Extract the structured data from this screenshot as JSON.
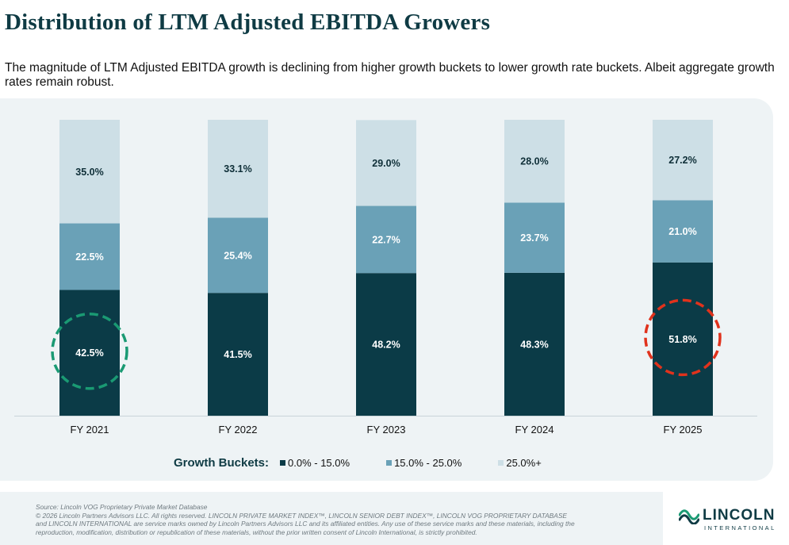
{
  "header": {
    "title": "Distribution of LTM Adjusted EBITDA Growers",
    "subtitle": "The magnitude of LTM Adjusted EBITDA growth is declining from higher growth buckets to lower growth rate buckets. Albeit aggregate growth rates remain robust."
  },
  "chart_data": {
    "type": "bar",
    "stacked": true,
    "categories": [
      "FY 2021",
      "FY 2022",
      "FY 2023",
      "FY 2024",
      "FY 2025"
    ],
    "series": [
      {
        "name": "0.0% - 15.0%",
        "color": "#0b3b47",
        "label_color": "#ffffff",
        "values": [
          42.5,
          41.5,
          48.2,
          48.3,
          51.8
        ],
        "labels": [
          "42.5%",
          "41.5%",
          "48.2%",
          "48.3%",
          "51.8%"
        ]
      },
      {
        "name": "15.0% - 25.0%",
        "color": "#6aa1b7",
        "label_color": "#ffffff",
        "values": [
          22.5,
          25.4,
          22.7,
          23.7,
          21.0
        ],
        "labels": [
          "22.5%",
          "25.4%",
          "22.7%",
          "23.7%",
          "21.0%"
        ]
      },
      {
        "name": "25.0%+",
        "color": "#cddfe6",
        "label_color": "#0f2f38",
        "values": [
          35.0,
          33.1,
          29.0,
          28.0,
          27.2
        ],
        "labels": [
          "35.0%",
          "33.1%",
          "29.0%",
          "28.0%",
          "27.2%"
        ]
      }
    ],
    "ylim": [
      0,
      100
    ],
    "legend_title": "Growth Buckets:",
    "legend_position": "bottom",
    "annotations": [
      {
        "category": "FY 2021",
        "shape": "dashed-circle",
        "color": "#1a9a73"
      },
      {
        "category": "FY 2025",
        "shape": "dashed-circle",
        "color": "#e0321c"
      }
    ]
  },
  "footer": {
    "source": "Source: Lincoln VOG Proprietary Private Market Database",
    "line1": "© 2026 Lincoln Partners Advisors LLC. All rights reserved.  LINCOLN PRIVATE MARKET INDEX™, LINCOLN SENIOR DEBT INDEX™, LINCOLN VOG PROPRIETARY DATABASE",
    "line2": "and LINCOLN INTERNATIONAL are service marks owned by Lincoln Partners Advisors LLC and its affiliated entities.  Any use of these service marks and these materials, including the",
    "line3": "reproduction, modification, distribution or republication of these materials, without the prior written consent of Lincoln International, is strictly prohibited."
  },
  "logo": {
    "name": "LINCOLN",
    "sub": "INTERNATIONAL",
    "icon": "lincoln-wave-icon",
    "colors": {
      "wave_top": "#1a9a73",
      "wave_bottom": "#0f3b44"
    }
  }
}
